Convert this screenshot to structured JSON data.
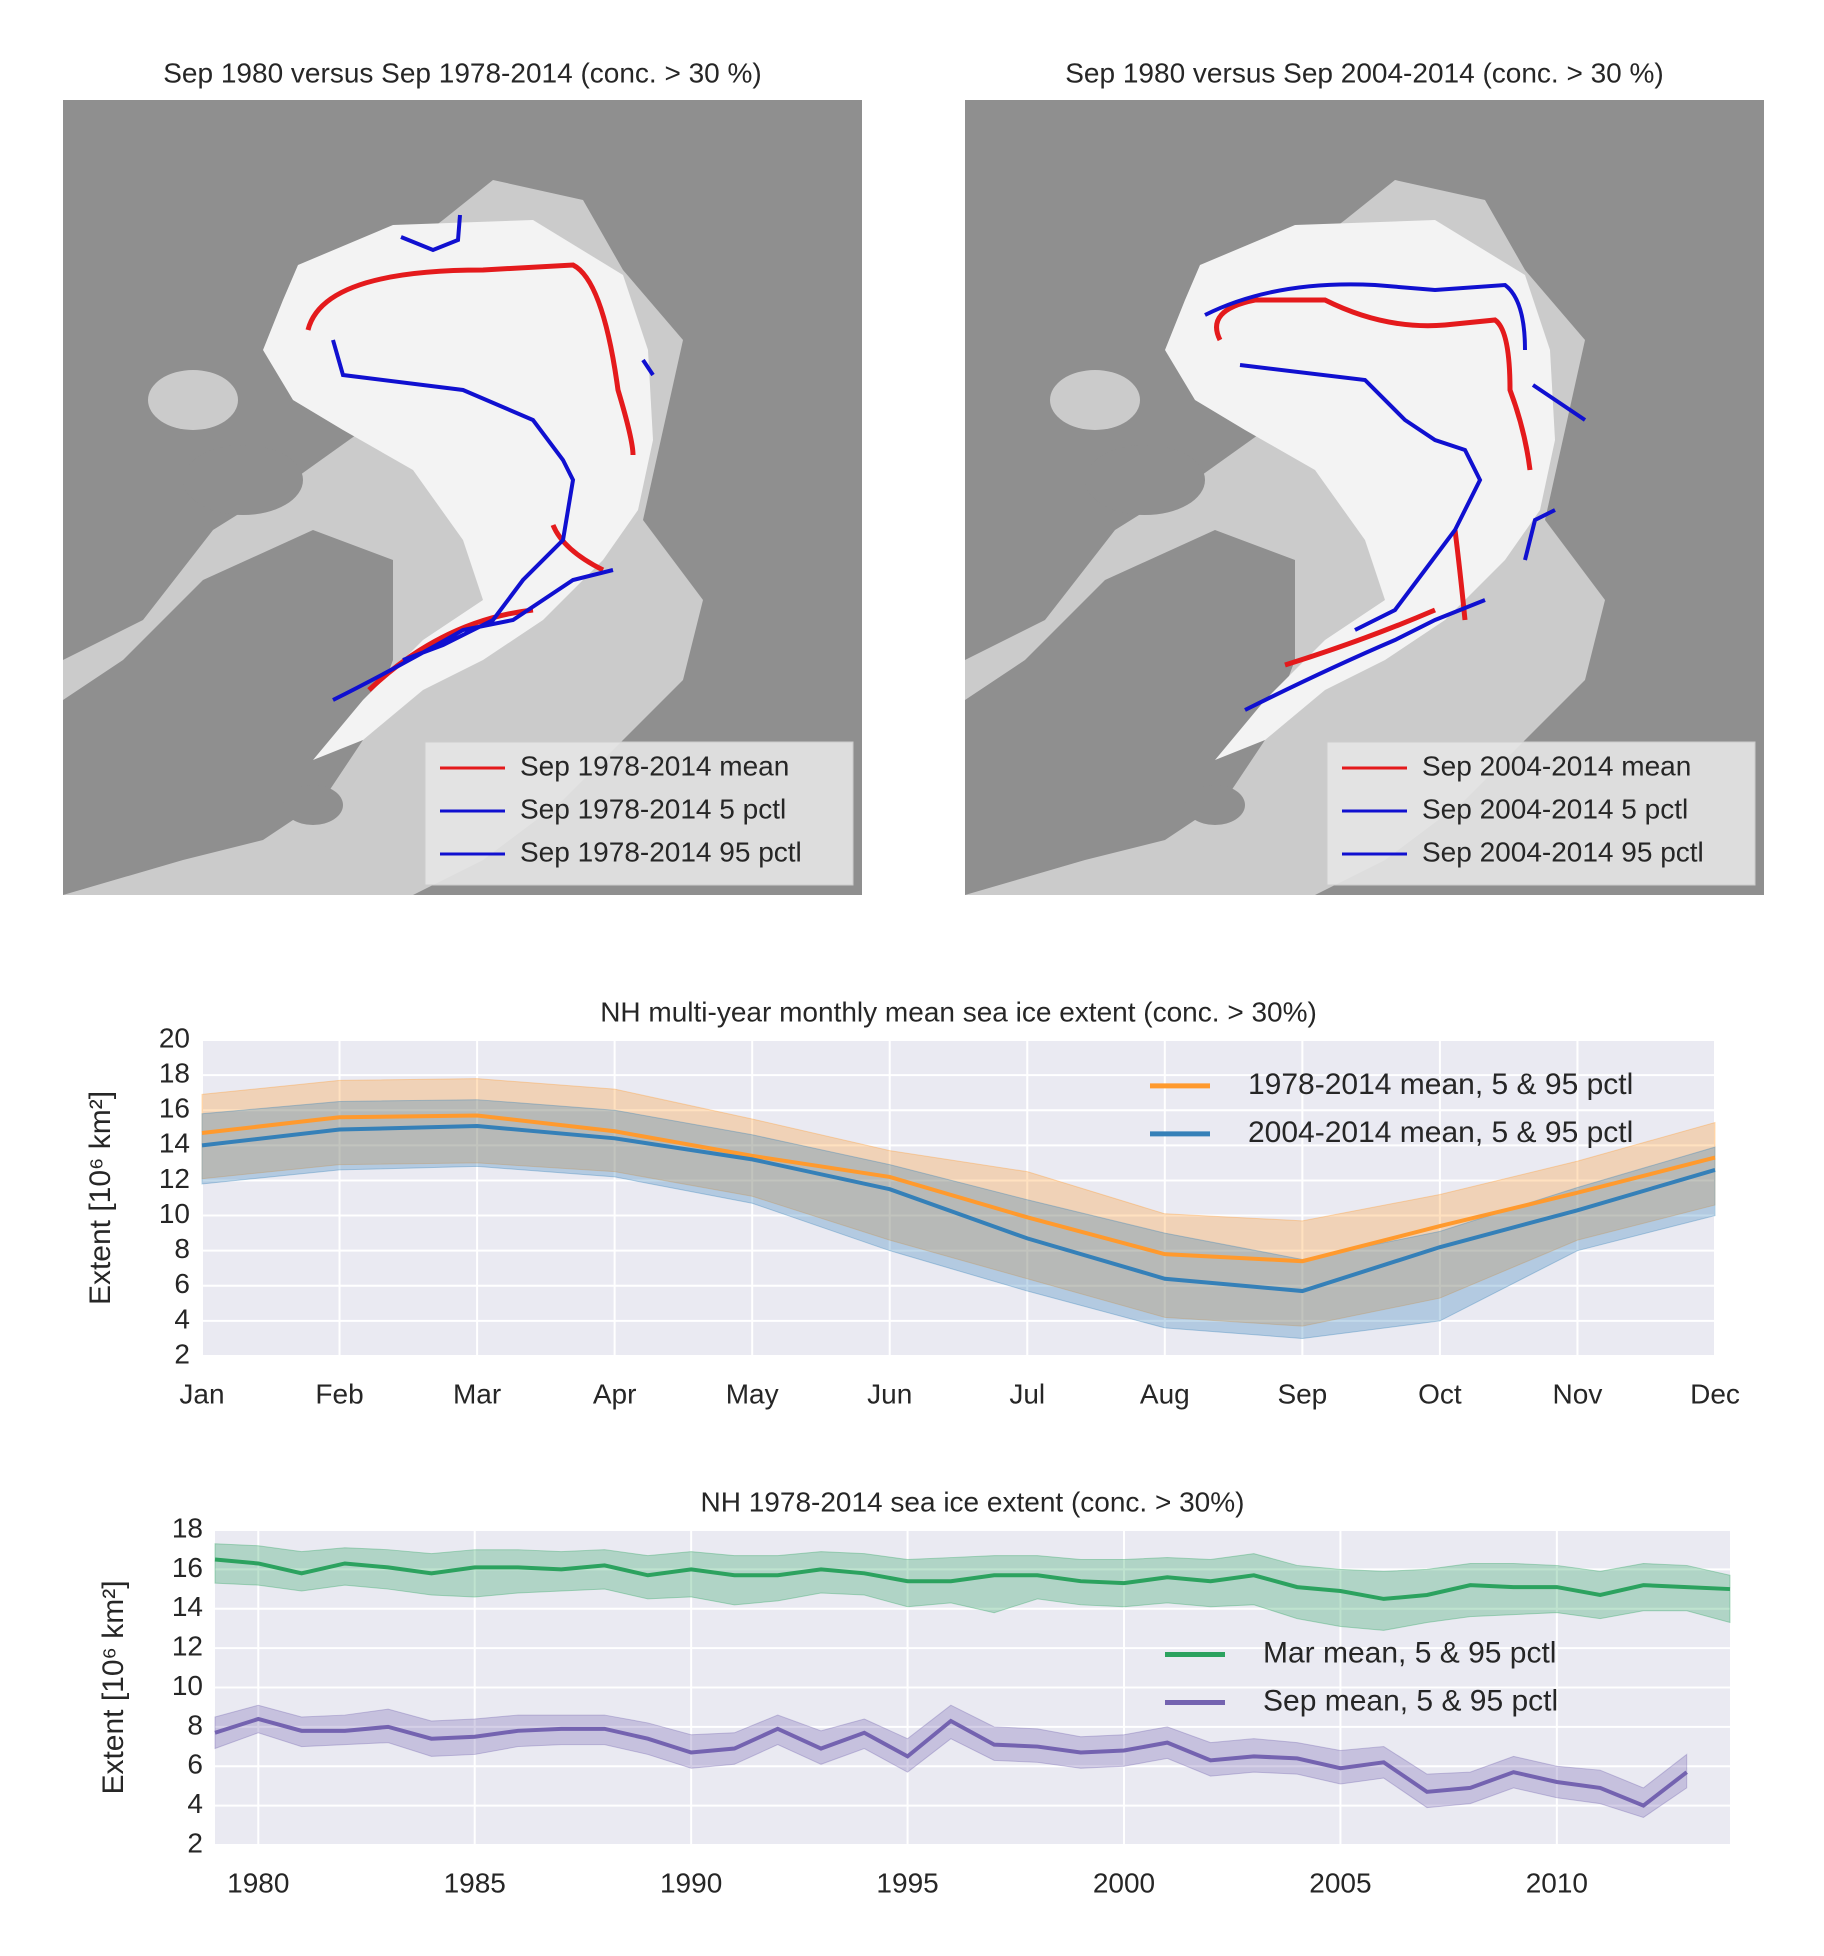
{
  "chart_data": [
    {
      "type": "map",
      "title": "Sep 1980 versus Sep 1978-2014 (conc. > 30 %)",
      "legend": [
        {
          "name": "Sep 1978-2014 mean",
          "color": "#e41a1c"
        },
        {
          "name": "Sep 1978-2014 5 pctl",
          "color": "#1010d0"
        },
        {
          "name": "Sep 1978-2014 95 pctl",
          "color": "#1010d0"
        }
      ]
    },
    {
      "type": "map",
      "title": "Sep 1980 versus Sep 2004-2014 (conc. > 30 %)",
      "legend": [
        {
          "name": "Sep 2004-2014 mean",
          "color": "#e41a1c"
        },
        {
          "name": "Sep 2004-2014 5 pctl",
          "color": "#1010d0"
        },
        {
          "name": "Sep 2004-2014 95 pctl",
          "color": "#1010d0"
        }
      ]
    },
    {
      "type": "line",
      "title": "NH multi-year monthly mean sea ice extent (conc. > 30%)",
      "ylabel": "Extent [10⁶ km²]",
      "categories": [
        "Jan",
        "Feb",
        "Mar",
        "Apr",
        "May",
        "Jun",
        "Jul",
        "Aug",
        "Sep",
        "Oct",
        "Nov",
        "Dec"
      ],
      "ylim": [
        2,
        20
      ],
      "yticks": [
        2,
        4,
        6,
        8,
        10,
        12,
        14,
        16,
        18,
        20
      ],
      "grid": true,
      "legend": "upper right",
      "series": [
        {
          "name": "1978-2014 mean, 5 & 95 pctl",
          "color": "#ff9a2e",
          "values": [
            14.7,
            15.6,
            15.7,
            14.8,
            13.4,
            12.2,
            9.9,
            7.8,
            7.4,
            9.4,
            11.3,
            13.3
          ],
          "upper": [
            16.9,
            17.7,
            17.8,
            17.2,
            15.5,
            13.7,
            12.5,
            10.1,
            9.7,
            11.2,
            13.1,
            15.3
          ],
          "lower": [
            12.1,
            12.9,
            13.0,
            12.5,
            11.1,
            8.6,
            6.4,
            4.2,
            3.7,
            5.3,
            8.6,
            10.6
          ]
        },
        {
          "name": "2004-2014 mean, 5 & 95 pctl",
          "color": "#3580b8",
          "values": [
            14.0,
            14.9,
            15.1,
            14.4,
            13.2,
            11.5,
            8.7,
            6.4,
            5.7,
            8.2,
            10.3,
            12.6
          ],
          "upper": [
            15.8,
            16.5,
            16.6,
            16.0,
            14.6,
            12.9,
            10.9,
            9.0,
            7.5,
            9.1,
            11.6,
            13.9
          ],
          "lower": [
            11.8,
            12.6,
            12.8,
            12.2,
            10.7,
            8.0,
            5.7,
            3.6,
            3.0,
            4.0,
            8.0,
            10.0
          ]
        }
      ]
    },
    {
      "type": "line",
      "title": "NH 1978-2014 sea ice extent (conc. > 30%)",
      "ylabel": "Extent [10⁶ km²]",
      "x": [
        1979,
        1980,
        1981,
        1982,
        1983,
        1984,
        1985,
        1986,
        1987,
        1988,
        1989,
        1990,
        1991,
        1992,
        1993,
        1994,
        1995,
        1996,
        1997,
        1998,
        1999,
        2000,
        2001,
        2002,
        2003,
        2004,
        2005,
        2006,
        2007,
        2008,
        2009,
        2010,
        2011,
        2012,
        2013,
        2014
      ],
      "xlim": [
        1979,
        2014
      ],
      "xticks": [
        1980,
        1985,
        1990,
        1995,
        2000,
        2005,
        2010
      ],
      "ylim": [
        2,
        18
      ],
      "yticks": [
        2,
        4,
        6,
        8,
        10,
        12,
        14,
        16,
        18
      ],
      "grid": true,
      "legend": "center right",
      "series": [
        {
          "name": "Mar mean, 5 & 95 pctl",
          "color": "#2ca25f",
          "values": [
            16.5,
            16.3,
            15.8,
            16.3,
            16.1,
            15.8,
            16.1,
            16.1,
            16.0,
            16.2,
            15.7,
            16.0,
            15.7,
            15.7,
            16.0,
            15.8,
            15.4,
            15.4,
            15.7,
            15.7,
            15.4,
            15.3,
            15.6,
            15.4,
            15.7,
            15.1,
            14.9,
            14.5,
            14.7,
            15.2,
            15.1,
            15.1,
            14.7,
            15.2,
            15.1,
            15.0
          ],
          "upper": [
            17.3,
            17.2,
            16.9,
            17.1,
            17.0,
            16.8,
            17.0,
            17.0,
            16.9,
            17.0,
            16.7,
            16.9,
            16.7,
            16.7,
            16.9,
            16.8,
            16.5,
            16.6,
            16.7,
            16.7,
            16.5,
            16.5,
            16.6,
            16.5,
            16.8,
            16.2,
            16.0,
            15.9,
            16.0,
            16.3,
            16.3,
            16.2,
            15.9,
            16.3,
            16.2,
            15.7
          ],
          "lower": [
            15.3,
            15.2,
            14.9,
            15.2,
            15.0,
            14.7,
            14.6,
            14.8,
            14.9,
            15.0,
            14.5,
            14.6,
            14.2,
            14.4,
            14.8,
            14.7,
            14.1,
            14.3,
            13.8,
            14.5,
            14.2,
            14.1,
            14.3,
            14.1,
            14.2,
            13.5,
            13.1,
            12.9,
            13.3,
            13.6,
            13.7,
            13.8,
            13.5,
            13.9,
            13.9,
            13.3
          ]
        },
        {
          "name": "Sep mean, 5 & 95 pctl",
          "color": "#7463b0",
          "values": [
            7.7,
            8.4,
            7.8,
            7.8,
            8.0,
            7.4,
            7.5,
            7.8,
            7.9,
            7.9,
            7.4,
            6.7,
            6.9,
            7.9,
            6.9,
            7.7,
            6.5,
            8.3,
            7.1,
            7.0,
            6.7,
            6.8,
            7.2,
            6.3,
            6.5,
            6.4,
            5.9,
            6.2,
            4.7,
            4.9,
            5.7,
            5.2,
            4.9,
            4.0,
            5.7,
            null
          ],
          "upper": [
            8.5,
            9.1,
            8.5,
            8.6,
            8.9,
            8.3,
            8.4,
            8.6,
            8.6,
            8.6,
            8.2,
            7.6,
            7.7,
            8.6,
            7.8,
            8.4,
            7.4,
            9.1,
            8.0,
            7.9,
            7.5,
            7.6,
            8.0,
            7.2,
            7.4,
            7.2,
            6.8,
            7.0,
            5.6,
            5.7,
            6.5,
            6.0,
            5.8,
            4.9,
            6.6,
            null
          ],
          "lower": [
            6.9,
            7.7,
            7.0,
            7.1,
            7.2,
            6.5,
            6.6,
            7.0,
            7.1,
            7.1,
            6.6,
            5.9,
            6.1,
            7.1,
            6.1,
            6.9,
            5.7,
            7.4,
            6.3,
            6.2,
            5.9,
            6.0,
            6.4,
            5.5,
            5.7,
            5.6,
            5.1,
            5.4,
            3.9,
            4.1,
            4.9,
            4.4,
            4.1,
            3.4,
            4.9,
            null
          ]
        }
      ]
    }
  ]
}
